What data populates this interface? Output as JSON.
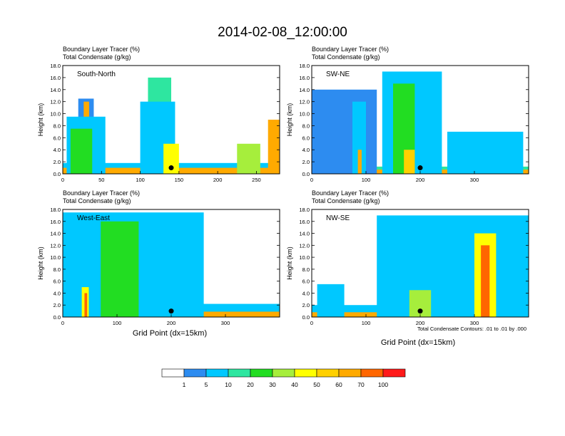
{
  "chart_data": {
    "type": "heatmap",
    "title": "2014-02-08_12:00:00",
    "bottom_note": "Total Condensate Contours: .01 to .01 by .000",
    "xlabel": "Grid Point (dx=15km)",
    "ylabel": "Height (km)",
    "field_labels": [
      "Boundary Layer Tracer    (%)",
      "Total Condensate    (g/kg)"
    ],
    "y_ticks": [
      "0.0",
      "2.0",
      "4.0",
      "6.0",
      "8.0",
      "10.0",
      "12.0",
      "14.0",
      "16.0",
      "18.0"
    ],
    "ylim": [
      0,
      18
    ],
    "panels": [
      {
        "name": "South-North",
        "xlim": [
          0,
          280
        ],
        "x_ticks": [
          0,
          50,
          100,
          150,
          200,
          250
        ],
        "marker": {
          "x": 140,
          "y": 1.0
        },
        "features": [
          {
            "x0": 0,
            "x1": 280,
            "ytop": 1.8,
            "level": 2
          },
          {
            "x0": 0,
            "x1": 280,
            "ytop": 1.0,
            "level": 8
          },
          {
            "x0": 20,
            "x1": 40,
            "ytop": 12.5,
            "level": 1
          },
          {
            "x0": 27,
            "x1": 34,
            "ytop": 12.0,
            "level": 8
          },
          {
            "x0": 5,
            "x1": 55,
            "ytop": 9.5,
            "level": 2
          },
          {
            "x0": 10,
            "x1": 38,
            "ytop": 7.5,
            "level": 4
          },
          {
            "x0": 110,
            "x1": 140,
            "ytop": 16.0,
            "level": 3
          },
          {
            "x0": 100,
            "x1": 145,
            "ytop": 12.0,
            "level": 2
          },
          {
            "x0": 130,
            "x1": 150,
            "ytop": 5.0,
            "level": 6
          },
          {
            "x0": 225,
            "x1": 255,
            "ytop": 5.0,
            "level": 5
          },
          {
            "x0": 265,
            "x1": 280,
            "ytop": 9.0,
            "level": 8
          }
        ]
      },
      {
        "name": "SW-NE",
        "xlim": [
          0,
          400
        ],
        "x_ticks": [
          0,
          100,
          200,
          300
        ],
        "marker": {
          "x": 200,
          "y": 1.0
        },
        "features": [
          {
            "x0": 0,
            "x1": 400,
            "ytop": 1.2,
            "level": 3
          },
          {
            "x0": 0,
            "x1": 400,
            "ytop": 0.7,
            "level": 8
          },
          {
            "x0": 0,
            "x1": 120,
            "ytop": 14.0,
            "level": 1
          },
          {
            "x0": 75,
            "x1": 100,
            "ytop": 12.0,
            "level": 2
          },
          {
            "x0": 85,
            "x1": 92,
            "ytop": 4.0,
            "level": 8
          },
          {
            "x0": 130,
            "x1": 240,
            "ytop": 17.0,
            "level": 2
          },
          {
            "x0": 150,
            "x1": 190,
            "ytop": 15.0,
            "level": 4
          },
          {
            "x0": 170,
            "x1": 190,
            "ytop": 4.0,
            "level": 7
          },
          {
            "x0": 250,
            "x1": 390,
            "ytop": 7.0,
            "level": 2
          }
        ]
      },
      {
        "name": "West-East",
        "xlim": [
          0,
          400
        ],
        "x_ticks": [
          0,
          100,
          200,
          300
        ],
        "marker": {
          "x": 200,
          "y": 1.0
        },
        "features": [
          {
            "x0": 0,
            "x1": 400,
            "ytop": 2.2,
            "level": 2
          },
          {
            "x0": 0,
            "x1": 400,
            "ytop": 0.9,
            "level": 8
          },
          {
            "x0": 0,
            "x1": 260,
            "ytop": 17.5,
            "level": 2
          },
          {
            "x0": 70,
            "x1": 140,
            "ytop": 16.0,
            "level": 4
          },
          {
            "x0": 30,
            "x1": 50,
            "ytop": 8.0,
            "level": 2
          },
          {
            "x0": 35,
            "x1": 48,
            "ytop": 5.0,
            "level": 6
          },
          {
            "x0": 40,
            "x1": 45,
            "ytop": 4.0,
            "level": 9
          }
        ]
      },
      {
        "name": "NW-SE",
        "xlim": [
          0,
          400
        ],
        "x_ticks": [
          0,
          100,
          200,
          300
        ],
        "marker": {
          "x": 200,
          "y": 1.0
        },
        "features": [
          {
            "x0": 0,
            "x1": 400,
            "ytop": 2.0,
            "level": 2
          },
          {
            "x0": 0,
            "x1": 400,
            "ytop": 0.8,
            "level": 8
          },
          {
            "x0": 10,
            "x1": 60,
            "ytop": 5.5,
            "level": 2
          },
          {
            "x0": 120,
            "x1": 400,
            "ytop": 17.0,
            "level": 2
          },
          {
            "x0": 220,
            "x1": 320,
            "ytop": 13.5,
            "level": 2
          },
          {
            "x0": 300,
            "x1": 340,
            "ytop": 14.0,
            "level": 6
          },
          {
            "x0": 312,
            "x1": 328,
            "ytop": 12.0,
            "level": 9
          },
          {
            "x0": 180,
            "x1": 220,
            "ytop": 4.5,
            "level": 5
          }
        ]
      }
    ],
    "colorbar": {
      "labels": [
        "1",
        "5",
        "10",
        "20",
        "30",
        "40",
        "50",
        "60",
        "70",
        "100"
      ],
      "colors": [
        "#ffffff",
        "#2d8cf0",
        "#00c8ff",
        "#2ee6a0",
        "#22dd22",
        "#a6ee3c",
        "#ffff00",
        "#ffd000",
        "#ffaa00",
        "#ff6600",
        "#ff1a1a"
      ]
    }
  }
}
